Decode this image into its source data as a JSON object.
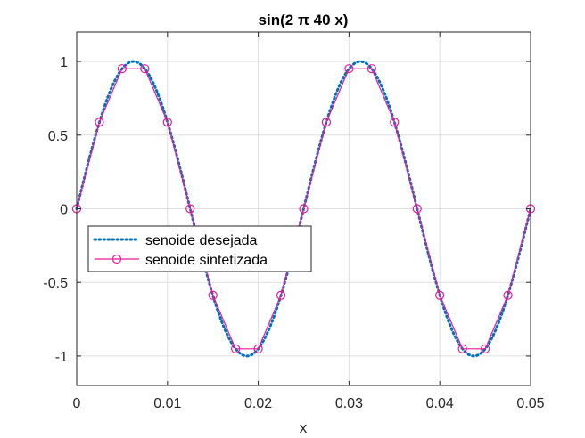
{
  "chart_data": {
    "type": "line",
    "title": "sin(2 π 40 x)",
    "xlabel": "x",
    "ylabel": "",
    "xlim": [
      0,
      0.05
    ],
    "ylim": [
      -1.2,
      1.2
    ],
    "xticks": [
      0,
      0.01,
      0.02,
      0.03,
      0.04,
      0.05
    ],
    "xtick_labels": [
      "0",
      "0.01",
      "0.02",
      "0.03",
      "0.04",
      "0.05"
    ],
    "yticks": [
      -1,
      -0.5,
      0,
      0.5,
      1
    ],
    "ytick_labels": [
      "-1",
      "-0.5",
      "0",
      "0.5",
      "1"
    ],
    "grid": true,
    "legend_position": "middle-left",
    "series": [
      {
        "name": "senoide desejada",
        "style": "dotted",
        "color": "#0072BD",
        "function": "sin(2 π 40 x)",
        "x_range": [
          0,
          0.05
        ]
      },
      {
        "name": "senoide sintetizada",
        "style": "solid-circle-markers",
        "color": "#E6199A",
        "x": [
          0,
          0.0025,
          0.005,
          0.0075,
          0.01,
          0.0125,
          0.015,
          0.0175,
          0.02,
          0.0225,
          0.025,
          0.0275,
          0.03,
          0.0325,
          0.035,
          0.0375,
          0.04,
          0.0425,
          0.045,
          0.0475,
          0.05
        ],
        "y": [
          0,
          0.588,
          0.951,
          0.951,
          0.588,
          0,
          -0.588,
          -0.951,
          -0.951,
          -0.588,
          0,
          0.588,
          0.951,
          0.951,
          0.588,
          0,
          -0.588,
          -0.951,
          -0.951,
          -0.588,
          0
        ]
      }
    ]
  }
}
